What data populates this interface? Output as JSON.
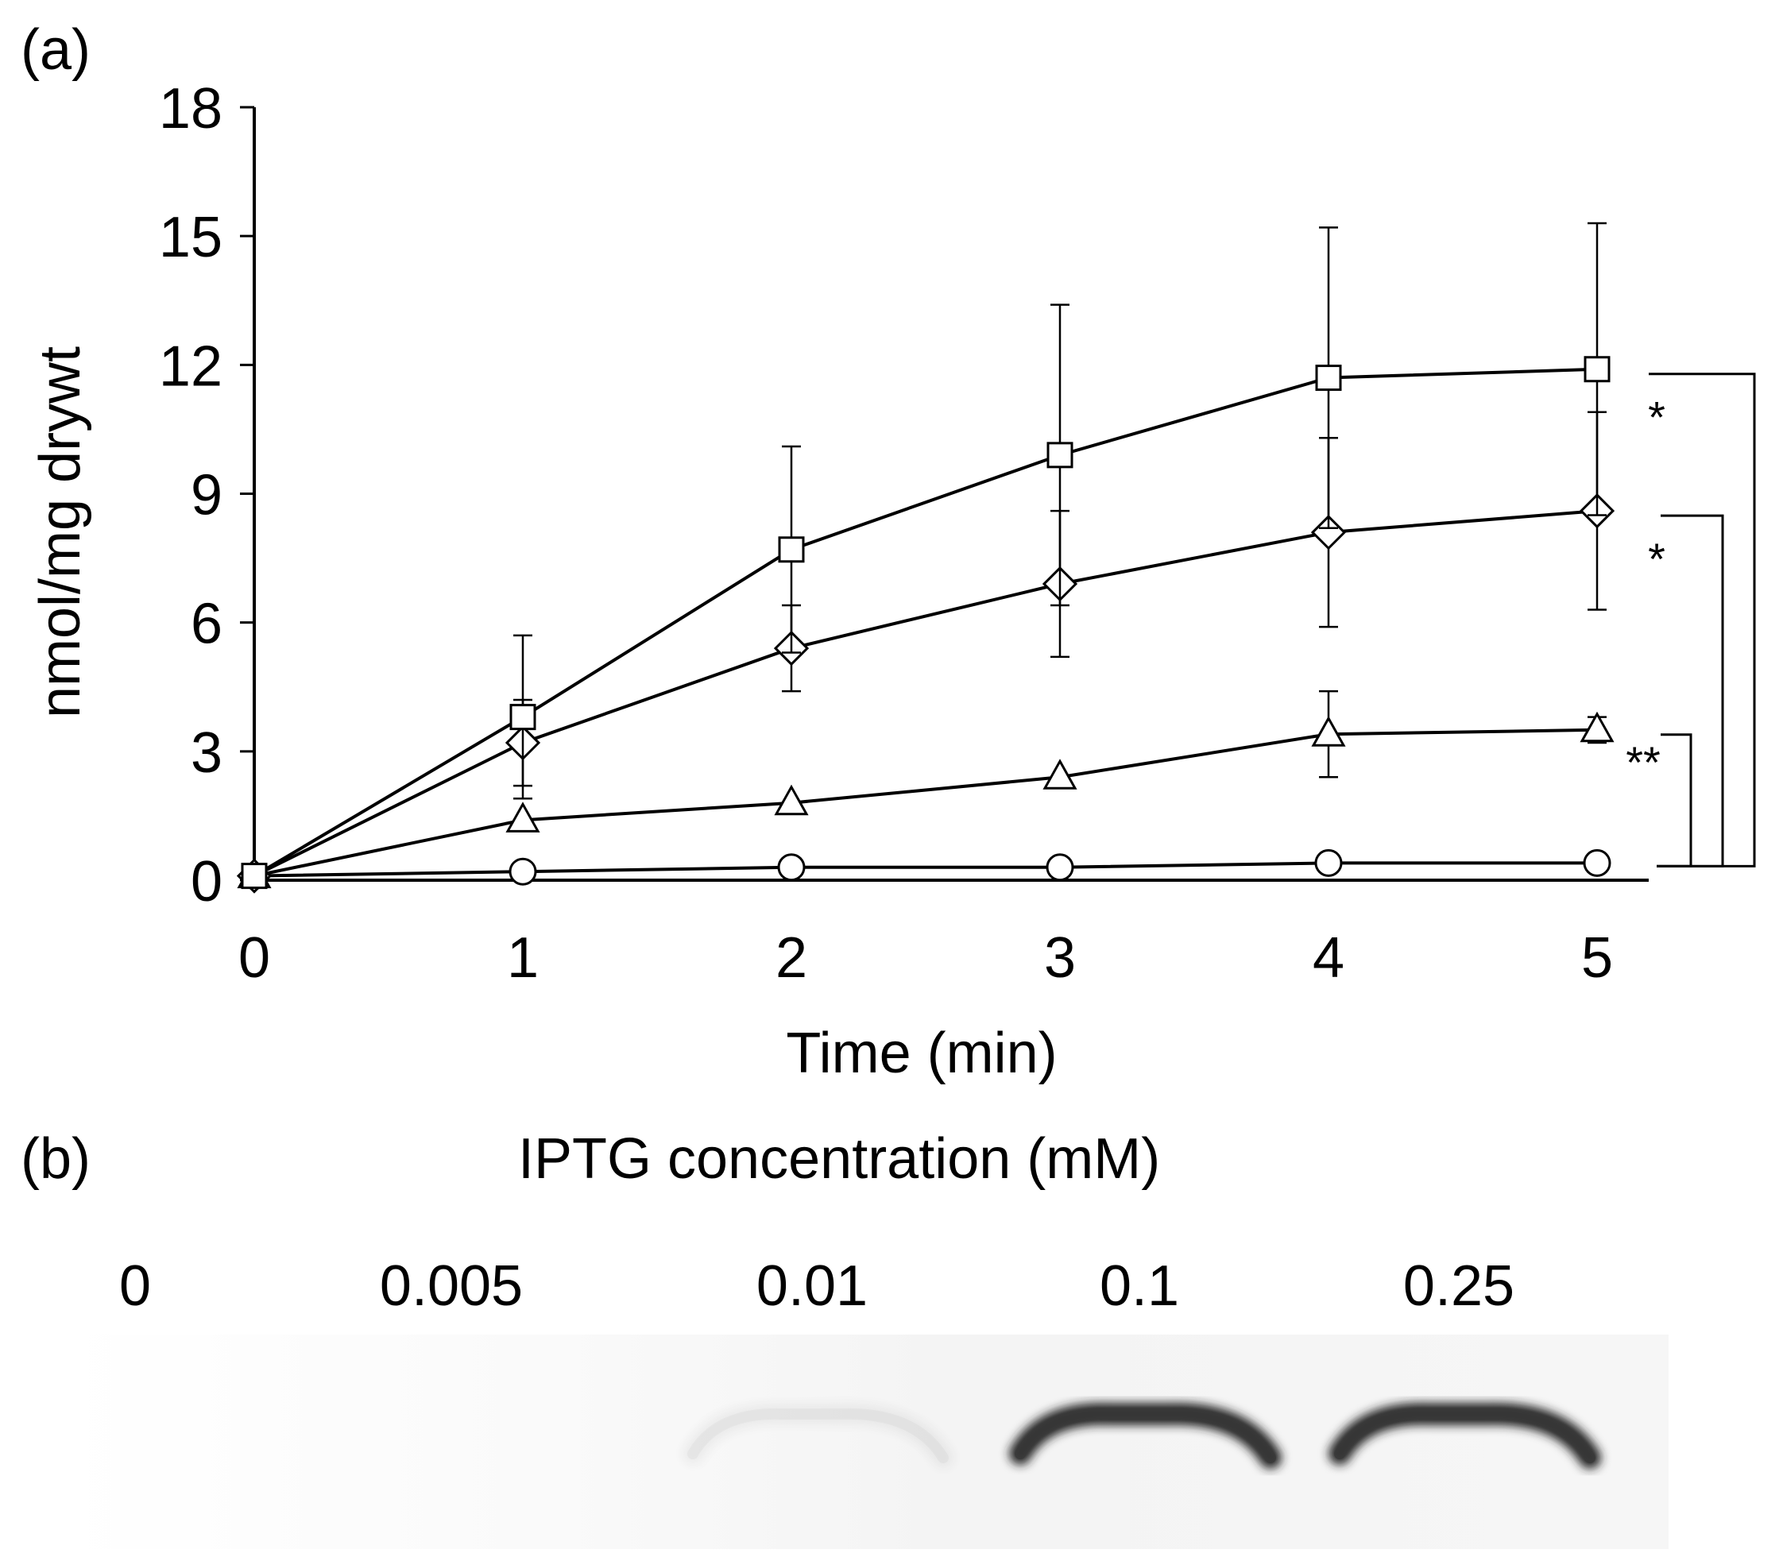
{
  "panel_a_label": "(a)",
  "panel_b_label": "(b)",
  "chart_data": {
    "type": "line",
    "xlabel": "Time (min)",
    "ylabel": "nmol/mg drywt",
    "x": [
      0,
      1,
      2,
      3,
      4,
      5
    ],
    "xlim": [
      0,
      5.2
    ],
    "ylim": [
      0,
      18
    ],
    "yticks": [
      0,
      3,
      6,
      9,
      12,
      15,
      18
    ],
    "xticks": [
      0,
      1,
      2,
      3,
      4,
      5
    ],
    "series": [
      {
        "name": "square",
        "marker": "square",
        "values": [
          0.1,
          3.8,
          7.7,
          9.9,
          11.7,
          11.9
        ],
        "errors": [
          0,
          1.9,
          2.4,
          3.5,
          3.5,
          3.4
        ]
      },
      {
        "name": "diamond",
        "marker": "diamond",
        "values": [
          0.1,
          3.2,
          5.4,
          6.9,
          8.1,
          8.6
        ],
        "errors": [
          0,
          1.0,
          1.0,
          1.7,
          2.2,
          2.3
        ]
      },
      {
        "name": "triangle",
        "marker": "triangle",
        "values": [
          0.1,
          1.4,
          1.8,
          2.4,
          3.4,
          3.5
        ],
        "errors": [
          0,
          0,
          0,
          0,
          1.0,
          0.3
        ]
      },
      {
        "name": "circle",
        "marker": "circle",
        "values": [
          0.1,
          0.2,
          0.3,
          0.3,
          0.4,
          0.4
        ],
        "errors": [
          0,
          0,
          0,
          0,
          0,
          0
        ]
      }
    ],
    "significance": [
      {
        "label": "*",
        "from_series": "square"
      },
      {
        "label": "*",
        "from_series": "diamond"
      },
      {
        "label": "**",
        "from_series": "triangle"
      }
    ]
  },
  "panel_b": {
    "title": "IPTG concentration (mM)",
    "lanes": [
      {
        "label": "0",
        "band_intensity": 0
      },
      {
        "label": "0.005",
        "band_intensity": 0
      },
      {
        "label": "0.01",
        "band_intensity": 0.05
      },
      {
        "label": "0.1",
        "band_intensity": 1
      },
      {
        "label": "0.25",
        "band_intensity": 1
      }
    ]
  }
}
